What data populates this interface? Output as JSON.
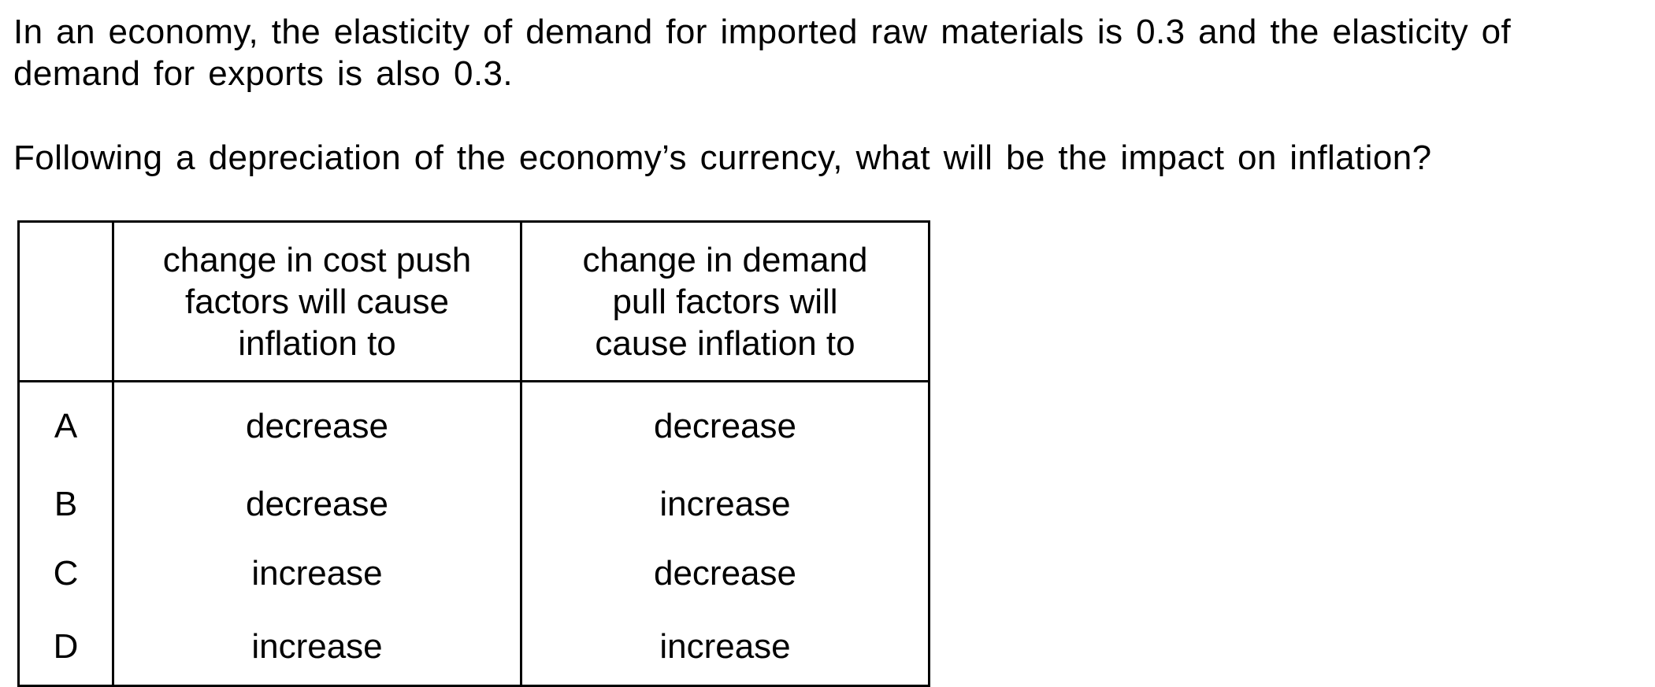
{
  "question": {
    "stem_line_1": "In an economy, the elasticity of demand for imported raw materials is 0.3 and the elasticity of",
    "stem_line_2": "demand for exports is also 0.3.",
    "prompt": "Following a depreciation of the economy’s currency, what will be the impact on inflation?"
  },
  "table": {
    "header_empty": "",
    "header_col_1_line_1": "change in cost push",
    "header_col_1_line_2": "factors will cause",
    "header_col_1_line_3": "inflation to",
    "header_col_2_line_1": "change in demand",
    "header_col_2_line_2": "pull factors will",
    "header_col_2_line_3": "cause inflation to",
    "rows": [
      {
        "letter": "A",
        "cost_push": "decrease",
        "demand_pull": "decrease"
      },
      {
        "letter": "B",
        "cost_push": "decrease",
        "demand_pull": "increase"
      },
      {
        "letter": "C",
        "cost_push": "increase",
        "demand_pull": "decrease"
      },
      {
        "letter": "D",
        "cost_push": "increase",
        "demand_pull": "increase"
      }
    ]
  }
}
